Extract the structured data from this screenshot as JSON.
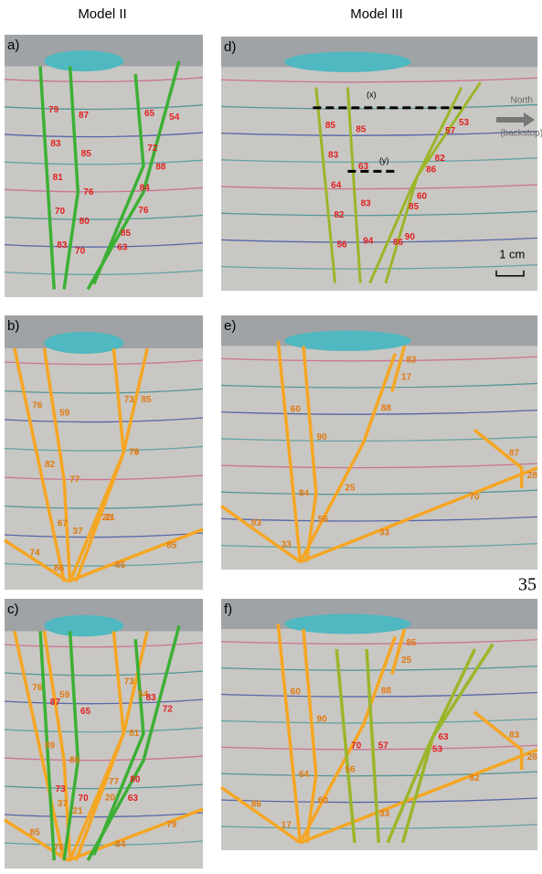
{
  "header": {
    "left": "Model II",
    "right": "Model III"
  },
  "page_number": "35",
  "panels": [
    {
      "label": "a)",
      "dips": [
        79,
        87,
        65,
        54,
        83,
        85,
        72,
        88,
        81,
        76,
        84,
        76,
        70,
        80,
        85,
        63,
        83,
        70
      ]
    },
    {
      "label": "b)",
      "dips": [
        76,
        59,
        73,
        85,
        74,
        85,
        82,
        77,
        76,
        73,
        86,
        85,
        67,
        37,
        21,
        20
      ]
    },
    {
      "label": "c)",
      "dips": [
        76,
        59,
        73,
        54,
        85,
        79,
        87,
        65,
        83,
        72,
        89,
        85,
        81,
        77,
        76,
        84,
        73,
        70,
        80,
        63,
        37,
        21,
        20
      ]
    },
    {
      "label": "d)",
      "dips": [
        85,
        85,
        57,
        53,
        83,
        63,
        86,
        82,
        64,
        83,
        85,
        60,
        82,
        94,
        86,
        90,
        56
      ]
    },
    {
      "label": "e)",
      "dips": [
        60,
        90,
        88,
        82,
        83,
        70,
        87,
        84,
        56,
        25,
        17,
        33,
        33,
        28
      ]
    },
    {
      "label": "f)",
      "dips": [
        60,
        90,
        88,
        85,
        86,
        82,
        83,
        70,
        57,
        53,
        63,
        64,
        60,
        56,
        25,
        17,
        33,
        28
      ]
    }
  ],
  "annotations": {
    "x": "(x)",
    "y": "(y)",
    "north": "North",
    "backstop": "(backstop)",
    "scale": "1 cm"
  }
}
